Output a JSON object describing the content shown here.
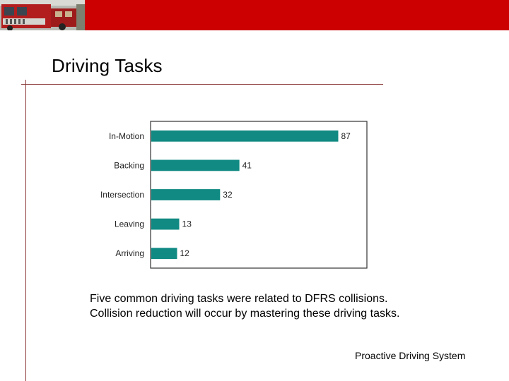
{
  "slide": {
    "title": "Driving Tasks",
    "caption_line1": "Five common driving tasks were related to DFRS collisions.",
    "caption_line2": "Collision reduction will occur by mastering these driving tasks.",
    "footer": "Proactive Driving System"
  },
  "colors": {
    "banner": "#cc0000",
    "bar": "#108a82",
    "rule": "#8b3a3a"
  },
  "chart_data": {
    "type": "bar",
    "orientation": "horizontal",
    "categories": [
      "In-Motion",
      "Backing",
      "Intersection",
      "Leaving",
      "Arriving"
    ],
    "values": [
      87,
      41,
      32,
      13,
      12
    ],
    "title": "",
    "xlabel": "",
    "ylabel": "",
    "xlim": [
      0,
      100
    ],
    "grid": false,
    "legend": "none",
    "data_labels": true
  }
}
